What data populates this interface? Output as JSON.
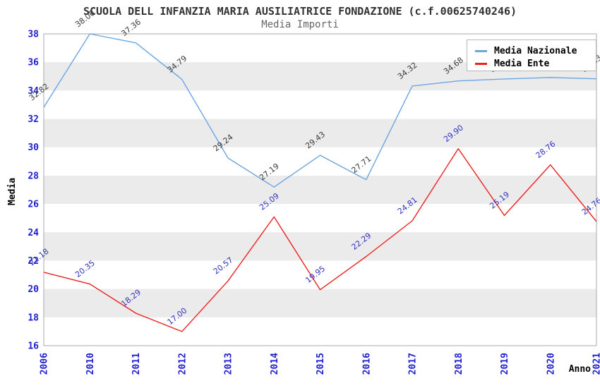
{
  "title": "SCUOLA DELL INFANZIA MARIA AUSILIATRICE FONDAZIONE (c.f.00625740246)",
  "subtitle": "Media Importi",
  "legend": {
    "position": "top-right",
    "items": [
      {
        "label": "Media Nazionale",
        "color": "#6CA6E1"
      },
      {
        "label": "Media Ente",
        "color": "#ED2020"
      }
    ]
  },
  "colors": {
    "background": "#FFFFFF",
    "band_gray": "#EBEBEB",
    "plot_border": "#ABABAB",
    "tick_label_blue": "#1F1FCE",
    "title_gray": "#333333",
    "subtitle_gray": "#666666",
    "national_line_blue": "#6CA6E1",
    "ente_line_red": "#ED2020",
    "national_value_label": "#3C3C3C",
    "ente_value_label": "#3232BE"
  },
  "chart_data": {
    "type": "line",
    "title": "SCUOLA DELL INFANZIA MARIA AUSILIATRICE FONDAZIONE (c.f.00625740246)",
    "subtitle": "Media Importi",
    "xlabel": "Anno",
    "ylabel": "Media",
    "ylim": [
      16,
      38
    ],
    "ytick_step": 2,
    "grid": "alternating-horizontal-bands",
    "band_color": "#EBEBEB",
    "legend_position": "top-right",
    "value_labels_shown": true,
    "value_label_rotation_deg": -38,
    "categories": [
      "2006",
      "2010",
      "2011",
      "2012",
      "2013",
      "2014",
      "2015",
      "2016",
      "2017",
      "2018",
      "2019",
      "2020",
      "2021"
    ],
    "series": [
      {
        "name": "Media Nazionale",
        "color": "#6CA6E1",
        "label_color": "#3C3C3C",
        "values": [
          32.82,
          38.0,
          37.36,
          34.79,
          29.24,
          27.19,
          29.43,
          27.71,
          34.32,
          34.68,
          34.82,
          34.92,
          34.83
        ],
        "note_hidden_labels": "2019 and 2020 value labels are covered by the legend box; values estimated from gridlines"
      },
      {
        "name": "Media Ente",
        "color": "#ED2020",
        "label_color": "#3232BE",
        "values": [
          21.18,
          20.35,
          18.29,
          17.0,
          20.57,
          25.09,
          19.95,
          22.29,
          24.81,
          29.9,
          25.19,
          28.76,
          24.76
        ]
      }
    ]
  }
}
